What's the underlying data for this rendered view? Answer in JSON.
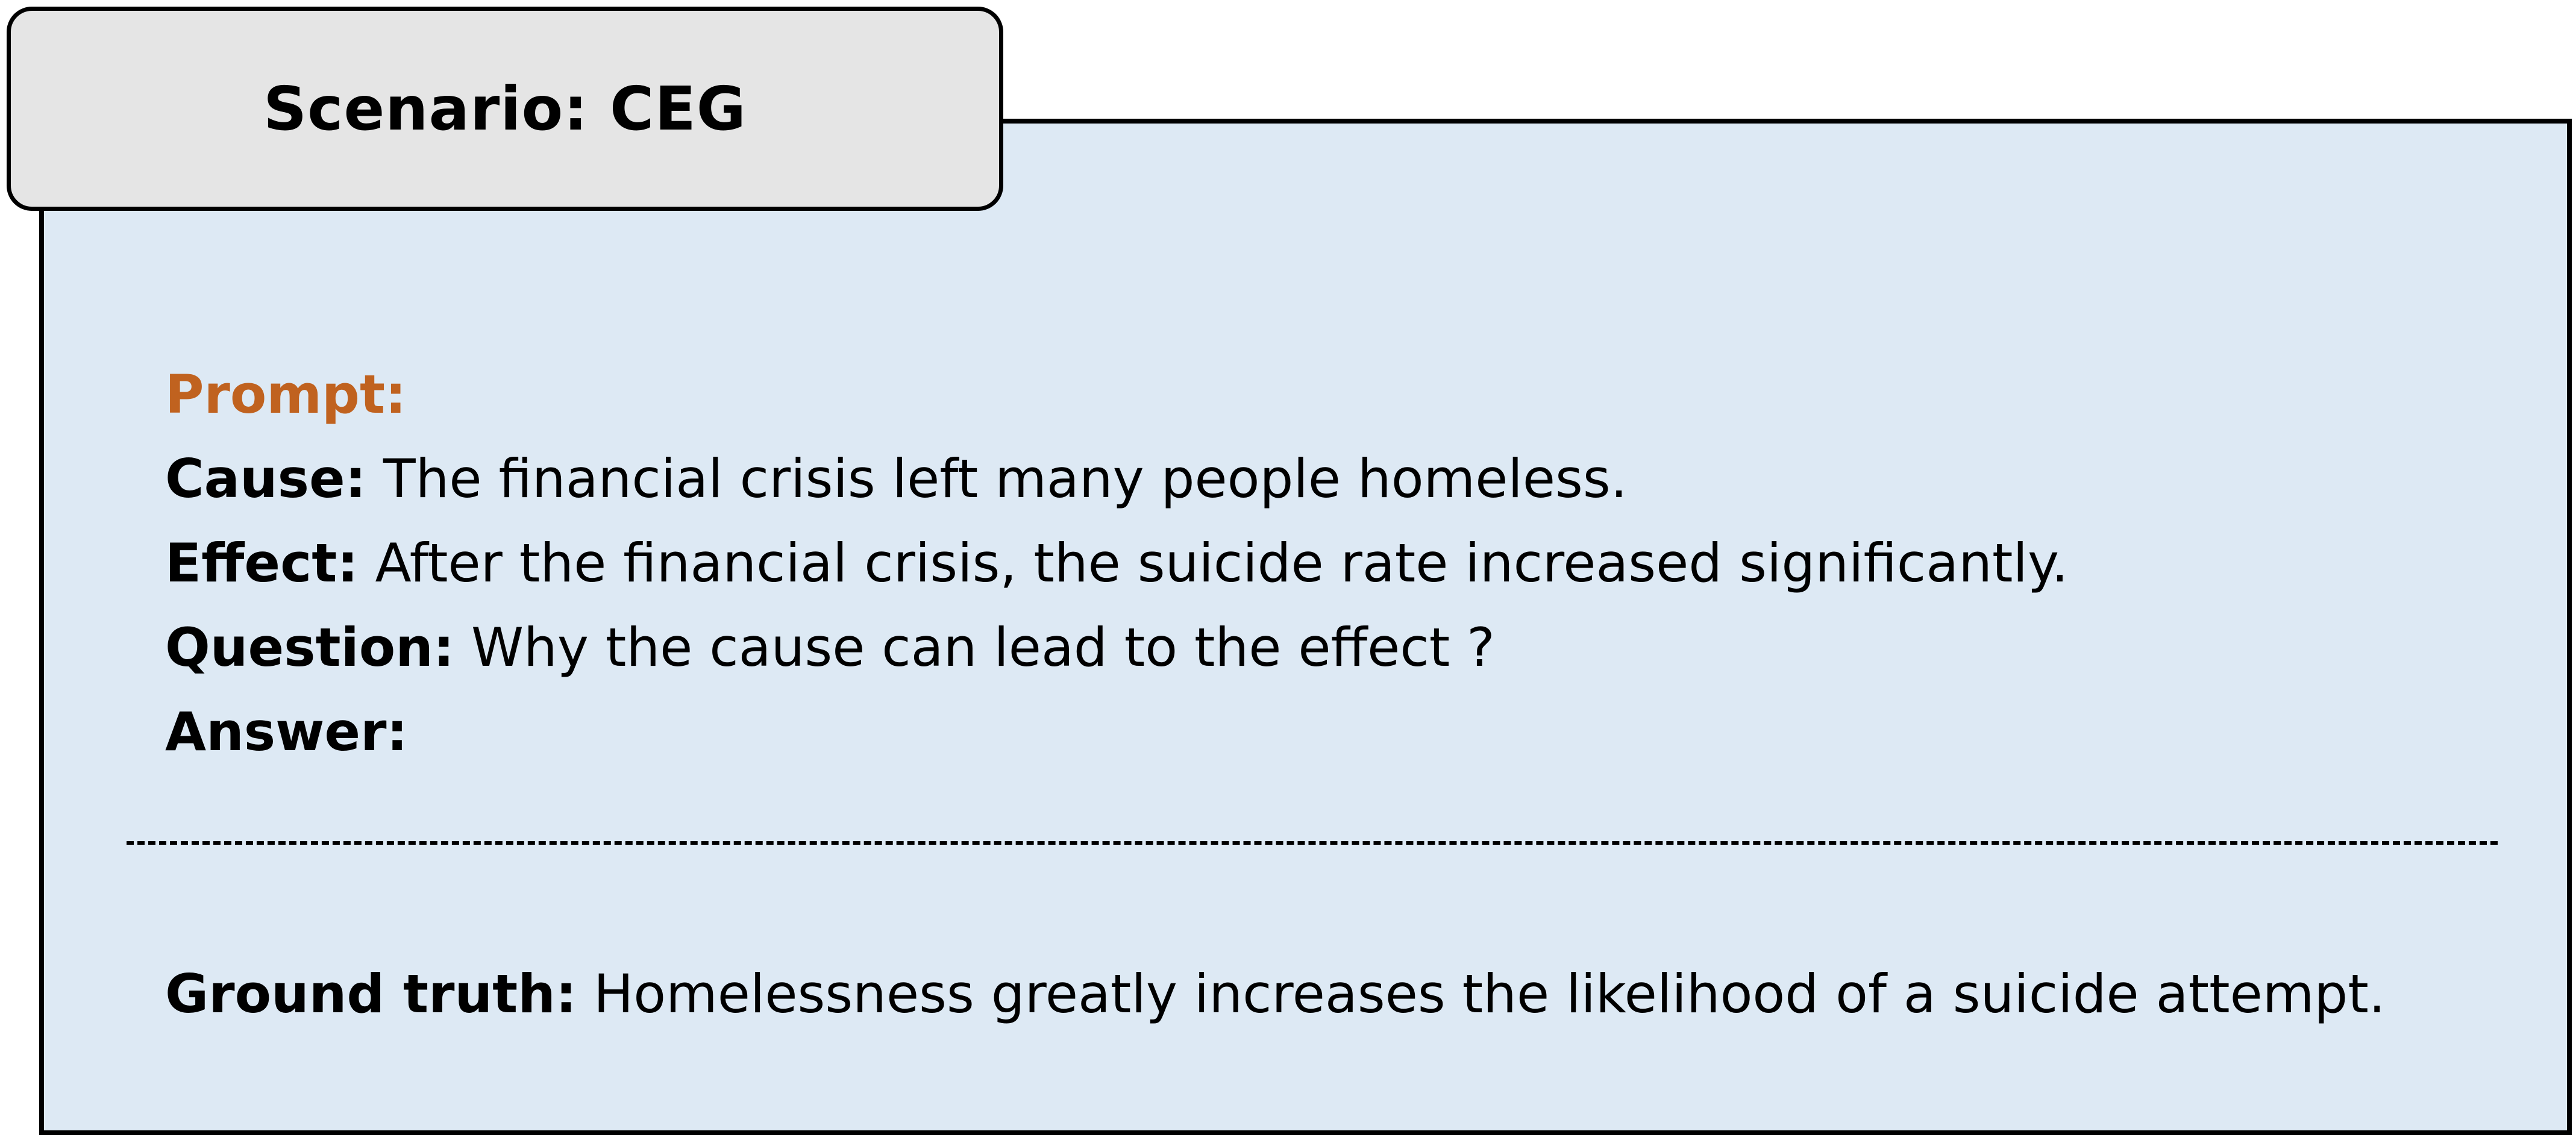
{
  "title": "Scenario: CEG",
  "prompt": {
    "heading": "Prompt:",
    "cause_label": "Cause:",
    "cause_text": "The financial crisis left many people homeless.",
    "effect_label": "Effect:",
    "effect_text": "After the financial crisis, the suicide rate increased significantly.",
    "question_label": "Question:",
    "question_text": "Why the cause can lead to the effect ?",
    "answer_label": "Answer:"
  },
  "ground_truth": {
    "label": "Ground truth:",
    "text": "Homelessness greatly increases the likelihood of a suicide attempt."
  },
  "colors": {
    "panel_background": "#dde9f4",
    "tab_background": "#e5e5e5",
    "prompt_heading": "#c0621f",
    "border": "#000000"
  }
}
